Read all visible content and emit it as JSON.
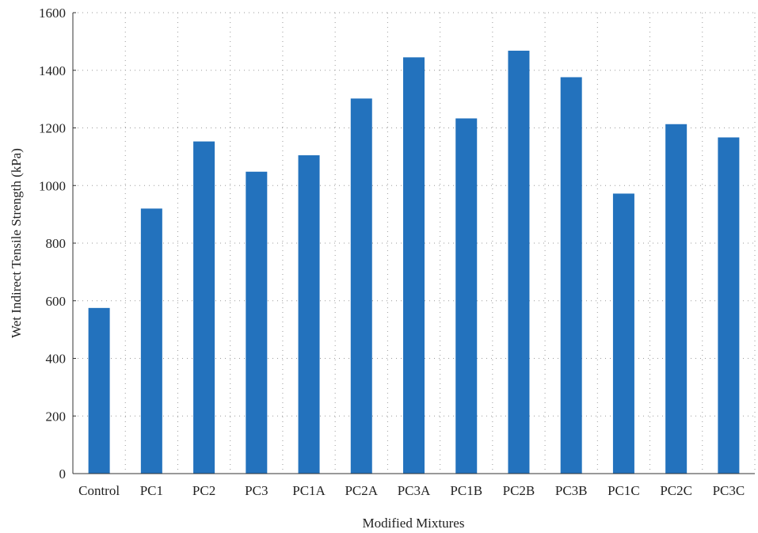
{
  "chart_data": {
    "type": "bar",
    "title": "",
    "xlabel": "Modified Mixtures",
    "ylabel": "Wet Indirect Tensile Strength (kPa)",
    "ylim": [
      0,
      1600
    ],
    "yticks": [
      0,
      200,
      400,
      600,
      800,
      1000,
      1200,
      1400,
      1600
    ],
    "grid": true,
    "legend": "none",
    "categories": [
      "Control",
      "PC1",
      "PC2",
      "PC3",
      "PC1A",
      "PC2A",
      "PC3A",
      "PC1B",
      "PC2B",
      "PC3B",
      "PC1C",
      "PC2C",
      "PC3C"
    ],
    "values": [
      575,
      920,
      1153,
      1048,
      1105,
      1302,
      1445,
      1233,
      1468,
      1376,
      972,
      1213,
      1167
    ],
    "bar_color": "#2372bd"
  }
}
